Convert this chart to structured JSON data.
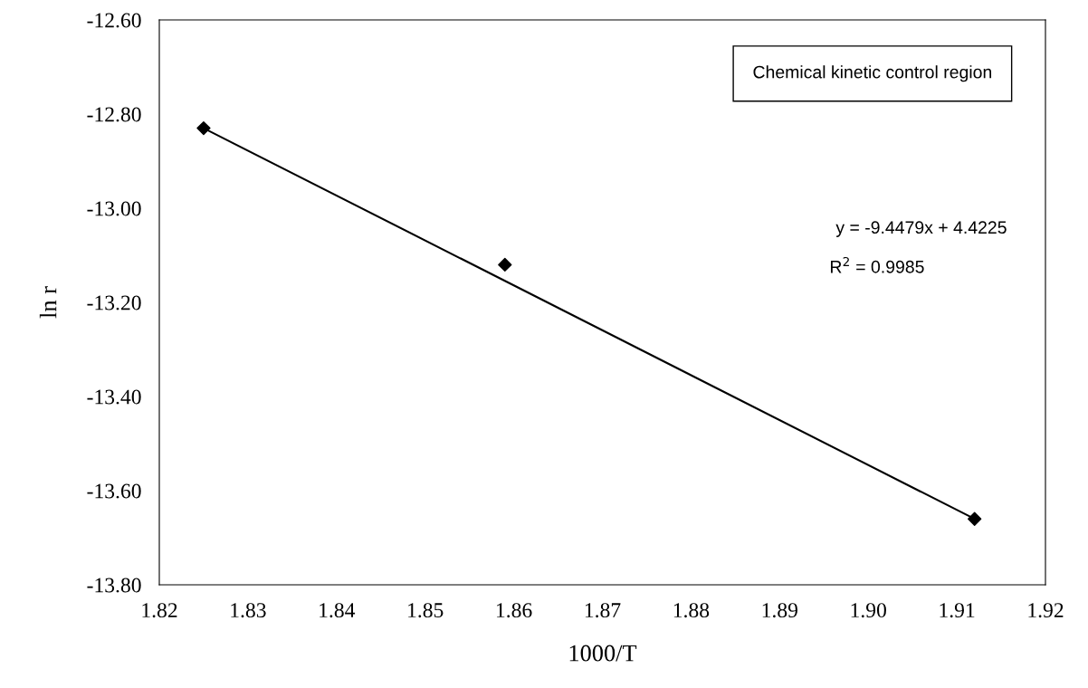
{
  "chart_data": {
    "type": "scatter",
    "xlabel": "1000/T",
    "ylabel": "ln r",
    "series": [
      {
        "color": "#000000",
        "marker": "diamond",
        "x": [
          1.825,
          1.859,
          1.912
        ],
        "values": [
          -12.83,
          -13.12,
          -13.66
        ]
      },
      {
        "type": "line",
        "color": "#000000",
        "line_style": "solid",
        "marker": "none",
        "x": [
          1.825,
          1.912
        ],
        "values": [
          -12.83,
          -13.66
        ]
      }
    ],
    "xlim": [
      1.82,
      1.92
    ],
    "xticks": [
      {
        "value": 1.82,
        "label": "1.82"
      },
      {
        "value": 1.83,
        "label": "1.83"
      },
      {
        "value": 1.84,
        "label": "1.84"
      },
      {
        "value": 1.85,
        "label": "1.85"
      },
      {
        "value": 1.86,
        "label": "1.86"
      },
      {
        "value": 1.87,
        "label": "1.87"
      },
      {
        "value": 1.88,
        "label": "1.88"
      },
      {
        "value": 1.89,
        "label": "1.89"
      },
      {
        "value": 1.9,
        "label": "1.90"
      },
      {
        "value": 1.91,
        "label": "1.91"
      },
      {
        "value": 1.92,
        "label": "1.92"
      }
    ],
    "ylim": [
      -13.8,
      -12.6
    ],
    "yticks": [
      {
        "value": -13.8,
        "label": "-13.80"
      },
      {
        "value": -13.6,
        "label": "-13.60"
      },
      {
        "value": -13.4,
        "label": "-13.40"
      },
      {
        "value": -13.2,
        "label": "-13.20"
      },
      {
        "value": -13.0,
        "label": "-13.00"
      },
      {
        "value": -12.8,
        "label": "-12.80"
      },
      {
        "value": -12.6,
        "label": "-12.60"
      }
    ],
    "annotations": [
      "Chemical kinetic control region",
      "y = -9.4479x + 4.4225",
      "R$^{2}$ = 0.9985"
    ],
    "grid": false,
    "legend": false
  }
}
